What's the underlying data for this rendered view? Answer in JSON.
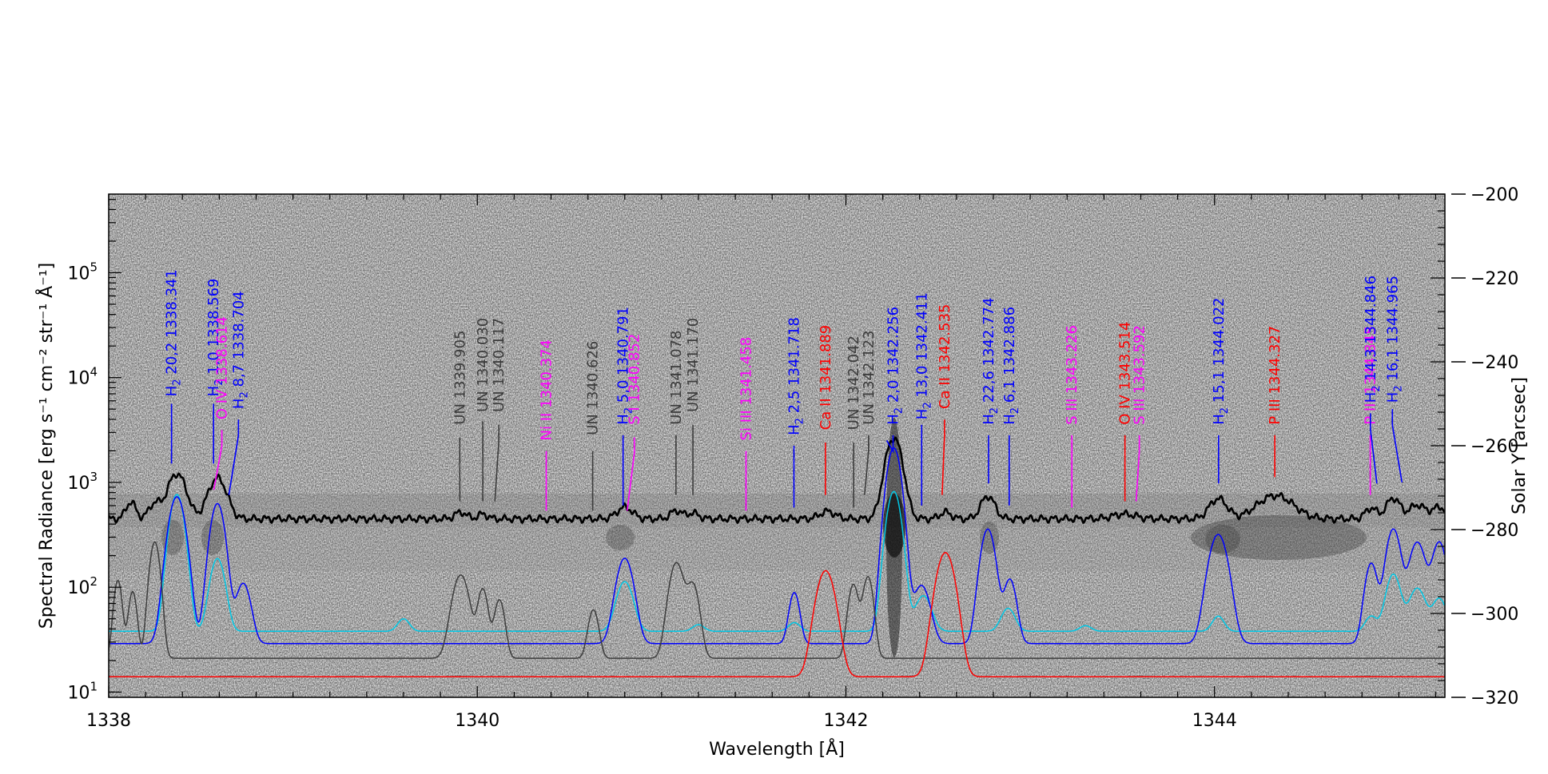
{
  "chart_data": {
    "type": "line",
    "xlabel": "Wavelength [Å]",
    "ylabel_left": "Spectral Radiance [erg s⁻¹ cm⁻² str⁻¹ Å⁻¹]",
    "ylabel_right": "Solar Y [arcsec]",
    "x_range": [
      1338.0,
      1345.25
    ],
    "y_left_range_log10": [
      0.95,
      5.75
    ],
    "y_left_scale": "log",
    "y_right_range": [
      -320,
      -200
    ],
    "x_ticks": [
      {
        "value": 1338,
        "label": "1338"
      },
      {
        "value": 1340,
        "label": "1340"
      },
      {
        "value": 1342,
        "label": "1342"
      },
      {
        "value": 1344,
        "label": "1344"
      }
    ],
    "y_left_ticks": [
      {
        "value": 1,
        "base": "10",
        "exp": "1"
      },
      {
        "value": 2,
        "base": "10",
        "exp": "2"
      },
      {
        "value": 3,
        "base": "10",
        "exp": "3"
      },
      {
        "value": 4,
        "base": "10",
        "exp": "4"
      },
      {
        "value": 5,
        "base": "10",
        "exp": "5"
      }
    ],
    "y_right_ticks": [
      {
        "value": -200,
        "label": "−200"
      },
      {
        "value": -220,
        "label": "−220"
      },
      {
        "value": -240,
        "label": "−240"
      },
      {
        "value": -260,
        "label": "−260"
      },
      {
        "value": -280,
        "label": "−280"
      },
      {
        "value": -300,
        "label": "−300"
      },
      {
        "value": -320,
        "label": "−320"
      }
    ],
    "background": "grayscale slit spectrogram (Solar Y vs Wavelength) with dark emission band near Solar Y −285 arcsec",
    "series": [
      {
        "color": "#000000",
        "baseline": 450,
        "peaks": [
          [
            1338.12,
            200,
            0.025
          ],
          [
            1338.25,
            180,
            0.03
          ],
          [
            1338.37,
            760,
            0.045
          ],
          [
            1338.59,
            650,
            0.045
          ],
          [
            1339.91,
            70,
            0.03
          ],
          [
            1340.03,
            50,
            0.025
          ],
          [
            1340.8,
            130,
            0.04
          ],
          [
            1341.08,
            90,
            0.03
          ],
          [
            1341.17,
            60,
            0.03
          ],
          [
            1341.9,
            80,
            0.04
          ],
          [
            1342.26,
            2200,
            0.04
          ],
          [
            1342.54,
            70,
            0.03
          ],
          [
            1342.77,
            290,
            0.035
          ],
          [
            1343.51,
            50,
            0.06
          ],
          [
            1344.02,
            250,
            0.045
          ],
          [
            1344.33,
            300,
            0.09
          ],
          [
            1344.85,
            120,
            0.03
          ],
          [
            1344.97,
            260,
            0.035
          ],
          [
            1345.1,
            160,
            0.04
          ],
          [
            1345.22,
            130,
            0.04
          ]
        ]
      },
      {
        "color": "#00c8e6",
        "baseline": 38,
        "peaks": [
          [
            1338.37,
            730,
            0.035
          ],
          [
            1338.59,
            150,
            0.035
          ],
          [
            1339.6,
            12,
            0.03
          ],
          [
            1340.8,
            75,
            0.04
          ],
          [
            1341.2,
            6,
            0.03
          ],
          [
            1341.72,
            8,
            0.03
          ],
          [
            1342.26,
            780,
            0.035
          ],
          [
            1342.42,
            45,
            0.04
          ],
          [
            1342.88,
            25,
            0.035
          ],
          [
            1343.3,
            5,
            0.03
          ],
          [
            1344.02,
            15,
            0.03
          ],
          [
            1344.85,
            15,
            0.03
          ],
          [
            1344.97,
            95,
            0.035
          ],
          [
            1345.1,
            60,
            0.04
          ],
          [
            1345.22,
            40,
            0.035
          ]
        ]
      },
      {
        "color": "#0000ff",
        "baseline": 29,
        "peaks": [
          [
            1338.37,
            700,
            0.04
          ],
          [
            1338.59,
            600,
            0.035
          ],
          [
            1338.73,
            80,
            0.035
          ],
          [
            1340.8,
            160,
            0.04
          ],
          [
            1341.72,
            60,
            0.025
          ],
          [
            1342.26,
            2100,
            0.035
          ],
          [
            1342.41,
            75,
            0.04
          ],
          [
            1342.77,
            330,
            0.035
          ],
          [
            1342.89,
            90,
            0.03
          ],
          [
            1344.02,
            290,
            0.045
          ],
          [
            1344.85,
            140,
            0.03
          ],
          [
            1344.97,
            330,
            0.035
          ],
          [
            1345.1,
            240,
            0.04
          ],
          [
            1345.22,
            240,
            0.035
          ]
        ]
      },
      {
        "color": "#3c3c3c",
        "baseline": 21,
        "peaks": [
          [
            1338.05,
            95,
            0.02
          ],
          [
            1338.13,
            70,
            0.02
          ],
          [
            1338.25,
            250,
            0.025
          ],
          [
            1339.91,
            110,
            0.04
          ],
          [
            1340.03,
            75,
            0.025
          ],
          [
            1340.12,
            55,
            0.025
          ],
          [
            1340.63,
            40,
            0.025
          ],
          [
            1341.08,
            150,
            0.035
          ],
          [
            1341.17,
            85,
            0.03
          ],
          [
            1342.04,
            85,
            0.025
          ],
          [
            1342.12,
            105,
            0.025
          ]
        ]
      },
      {
        "color": "#ff0000",
        "baseline": 14,
        "peaks": [
          [
            1341.89,
            130,
            0.045
          ],
          [
            1342.54,
            200,
            0.045
          ]
        ]
      }
    ],
    "line_labels": [
      {
        "x": 1338.341,
        "label_y": 3.82,
        "tick_top": 3.75,
        "tick_bot": 3.18,
        "color": "#0000ff",
        "sp": "H",
        "sub": "2",
        "rest": " 20,2 1338.341"
      },
      {
        "x": 1338.569,
        "label_y": 3.82,
        "tick_top": 3.75,
        "tick_bot": 3.18,
        "color": "#0000ff",
        "sp": "H",
        "sub": "2",
        "rest": " 1,0 1338.569"
      },
      {
        "x": 1338.614,
        "label_y": 3.6,
        "tick_top": 3.5,
        "tick_bot": 2.93,
        "color": "#ff00ff",
        "text": "O IV 1338.614",
        "lean": -10
      },
      {
        "x": 1338.704,
        "label_y": 3.7,
        "tick_top": 3.6,
        "tick_bot": 2.88,
        "color": "#0000ff",
        "sp": "H",
        "sub": "2",
        "rest": " 8,7 1338.704",
        "lean": -12
      },
      {
        "x": 1339.905,
        "label_y": 3.55,
        "tick_top": 3.43,
        "tick_bot": 2.82,
        "color": "#3c3c3c",
        "text": "UN 1339.905"
      },
      {
        "x": 1340.03,
        "label_y": 3.67,
        "tick_top": 3.58,
        "tick_bot": 2.82,
        "color": "#3c3c3c",
        "text": "UN 1340.030"
      },
      {
        "x": 1340.117,
        "label_y": 3.67,
        "tick_top": 3.55,
        "tick_bot": 2.82,
        "color": "#3c3c3c",
        "text": "UN 1340.117",
        "lean": -5
      },
      {
        "x": 1340.374,
        "label_y": 3.4,
        "tick_top": 3.3,
        "tick_bot": 2.73,
        "color": "#ff00ff",
        "text": "Ni II 1340.374"
      },
      {
        "x": 1340.626,
        "label_y": 3.45,
        "tick_top": 3.3,
        "tick_bot": 2.73,
        "color": "#3c3c3c",
        "text": "UN 1340.626"
      },
      {
        "x": 1340.791,
        "label_y": 3.55,
        "tick_top": 3.45,
        "tick_bot": 2.78,
        "color": "#0000ff",
        "sp": "H",
        "sub": "2",
        "rest": " 5,0 1340.791"
      },
      {
        "x": 1340.852,
        "label_y": 3.55,
        "tick_top": 3.43,
        "tick_bot": 2.73,
        "color": "#ff00ff",
        "text": "S I 1340.852",
        "lean": -9
      },
      {
        "x": 1341.078,
        "label_y": 3.55,
        "tick_top": 3.45,
        "tick_bot": 2.88,
        "color": "#3c3c3c",
        "text": "UN 1341.078"
      },
      {
        "x": 1341.17,
        "label_y": 3.67,
        "tick_top": 3.55,
        "tick_bot": 2.88,
        "color": "#3c3c3c",
        "text": "UN 1341.170"
      },
      {
        "x": 1341.458,
        "label_y": 3.4,
        "tick_top": 3.3,
        "tick_bot": 2.73,
        "color": "#ff00ff",
        "text": "Si III 1341.458"
      },
      {
        "x": 1341.718,
        "label_y": 3.45,
        "tick_top": 3.35,
        "tick_bot": 2.76,
        "color": "#0000ff",
        "sp": "H",
        "sub": "2",
        "rest": " 2,5 1341.718"
      },
      {
        "x": 1341.889,
        "label_y": 3.5,
        "tick_top": 3.38,
        "tick_bot": 2.88,
        "color": "#ff0000",
        "text": "Ca II 1341.889"
      },
      {
        "x": 1342.042,
        "label_y": 3.5,
        "tick_top": 3.38,
        "tick_bot": 2.76,
        "color": "#3c3c3c",
        "text": "UN 1342.042"
      },
      {
        "x": 1342.123,
        "label_y": 3.55,
        "tick_top": 3.45,
        "tick_bot": 2.88,
        "color": "#3c3c3c",
        "text": "UN 1342.123",
        "lean": -5
      },
      {
        "x": 1342.256,
        "label_y": 3.55,
        "tick_top": 3.45,
        "tick_bot": 3.4,
        "color": "#0000ff",
        "sp": "H",
        "sub": "2",
        "rest": " 2,0 1342.256",
        "lean": -8
      },
      {
        "x": 1342.411,
        "label_y": 3.6,
        "tick_top": 3.55,
        "tick_bot": 2.78,
        "color": "#0000ff",
        "sp": "H",
        "sub": "2",
        "rest": " 13,0 1342.411"
      },
      {
        "x": 1342.535,
        "label_y": 3.7,
        "tick_top": 3.6,
        "tick_bot": 2.88,
        "color": "#ff0000",
        "text": "Ca II 1342.535",
        "lean": -3
      },
      {
        "x": 1342.774,
        "label_y": 3.55,
        "tick_top": 3.45,
        "tick_bot": 2.99,
        "color": "#0000ff",
        "sp": "H",
        "sub": "2",
        "rest": " 22,6 1342.774"
      },
      {
        "x": 1342.886,
        "label_y": 3.55,
        "tick_top": 3.45,
        "tick_bot": 2.78,
        "color": "#0000ff",
        "sp": "H",
        "sub": "2",
        "rest": " 6,1 1342.886"
      },
      {
        "x": 1343.226,
        "label_y": 3.55,
        "tick_top": 3.45,
        "tick_bot": 2.76,
        "color": "#ff00ff",
        "text": "S III 1343.226"
      },
      {
        "x": 1343.514,
        "label_y": 3.55,
        "tick_top": 3.45,
        "tick_bot": 2.82,
        "color": "#ff0000",
        "text": "O IV 1343.514"
      },
      {
        "x": 1343.592,
        "label_y": 3.55,
        "tick_top": 3.45,
        "tick_bot": 2.82,
        "color": "#ff00ff",
        "text": "S III 1343.592",
        "lean": -4
      },
      {
        "x": 1344.022,
        "label_y": 3.55,
        "tick_top": 3.45,
        "tick_bot": 2.99,
        "color": "#0000ff",
        "sp": "H",
        "sub": "2",
        "rest": " 15,1 1344.022"
      },
      {
        "x": 1344.327,
        "label_y": 3.55,
        "tick_top": 3.45,
        "tick_bot": 3.05,
        "color": "#ff0000",
        "text": "P III 1344.327"
      },
      {
        "x": 1344.845,
        "label_y": 3.55,
        "tick_top": 3.45,
        "tick_bot": 2.88,
        "color": "#ff00ff",
        "text": "P III 1344.845"
      },
      {
        "x": 1344.846,
        "label_y": 3.76,
        "tick_top": 3.66,
        "tick_bot": 2.99,
        "color": "#0000ff",
        "sp": "H",
        "sub": "2",
        "rest": " 14,3 1344.846",
        "lean": 8
      },
      {
        "x": 1344.965,
        "label_y": 3.76,
        "tick_top": 3.7,
        "tick_bot": 3.0,
        "color": "#0000ff",
        "sp": "H",
        "sub": "2",
        "rest": " 16,1 1344.965",
        "lean": 12
      }
    ]
  }
}
